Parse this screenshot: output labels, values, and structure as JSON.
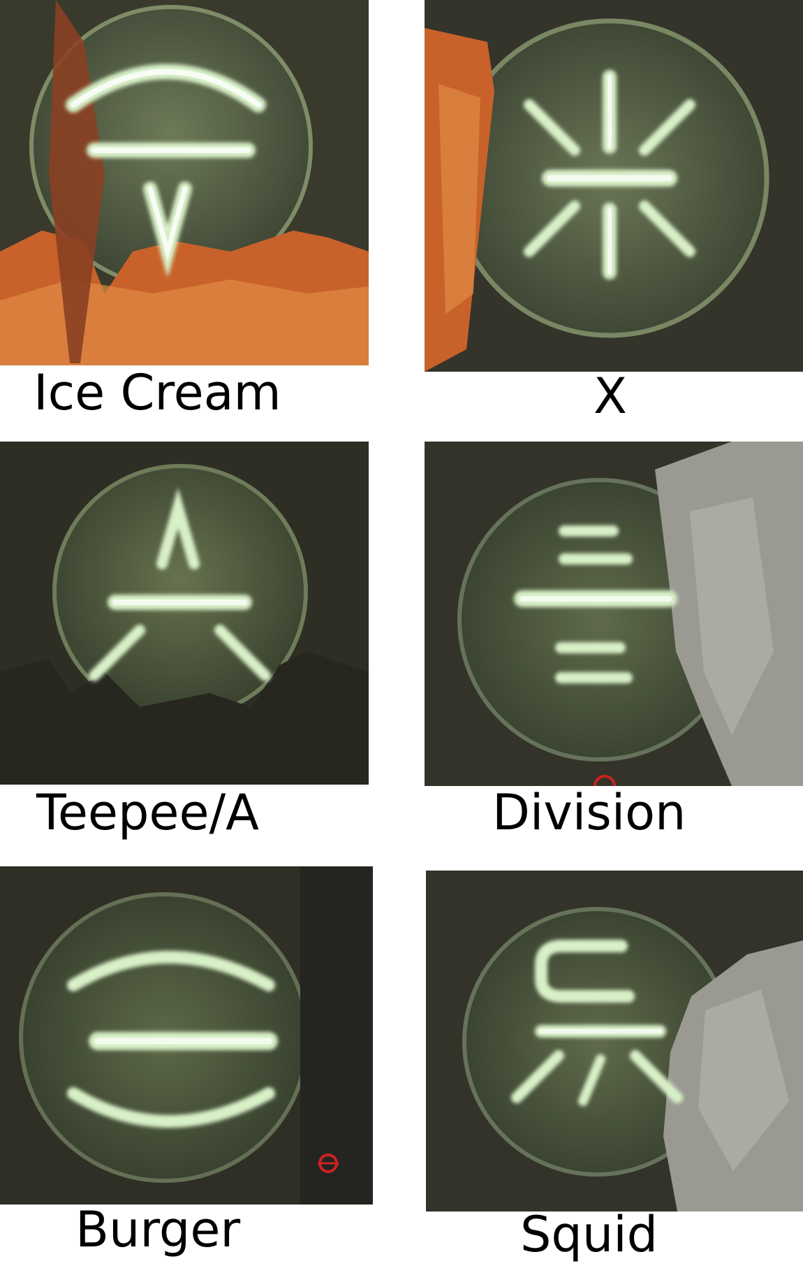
{
  "symbols": [
    {
      "label": "Ice Cream",
      "icon": "ice-cream-rune-icon"
    },
    {
      "label": "X",
      "icon": "x-rune-icon"
    },
    {
      "label": "Teepee/A",
      "icon": "teepee-rune-icon"
    },
    {
      "label": "Division",
      "icon": "division-rune-icon"
    },
    {
      "label": "Burger",
      "icon": "burger-rune-icon"
    },
    {
      "label": "Squid",
      "icon": "squid-rune-icon"
    }
  ],
  "colors": {
    "glow": "#d8f0c8",
    "seal": "#5e6a4c",
    "stone": "#34342a",
    "rock_orange": "#c8622a",
    "rock_grey": "#9a9a92"
  }
}
